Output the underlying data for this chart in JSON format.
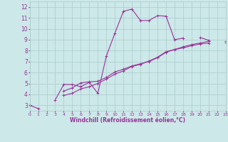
{
  "xlabel": "Windchill (Refroidissement éolien,°C)",
  "background_color": "#cce8e8",
  "grid_color": "#aacccc",
  "line_color": "#993399",
  "x_values": [
    0,
    1,
    2,
    3,
    4,
    5,
    6,
    7,
    8,
    9,
    10,
    11,
    12,
    13,
    14,
    15,
    16,
    17,
    18,
    19,
    20,
    21,
    22,
    23
  ],
  "y_main": [
    3.0,
    2.7,
    null,
    3.5,
    4.9,
    4.9,
    4.7,
    5.1,
    4.1,
    7.5,
    9.6,
    11.6,
    11.8,
    10.75,
    10.75,
    11.2,
    11.15,
    9.0,
    9.15,
    null,
    9.2,
    8.95,
    null,
    8.85
  ],
  "y_line1": [
    3.0,
    null,
    null,
    null,
    4.3,
    4.6,
    5.05,
    5.15,
    5.2,
    5.55,
    6.05,
    6.3,
    6.6,
    6.8,
    7.0,
    7.35,
    7.85,
    8.1,
    8.35,
    8.55,
    8.7,
    8.85,
    null,
    8.85
  ],
  "y_line2": [
    3.0,
    null,
    null,
    null,
    3.9,
    4.1,
    4.5,
    4.7,
    5.0,
    5.4,
    5.85,
    6.15,
    6.55,
    6.75,
    7.05,
    7.4,
    7.9,
    8.1,
    8.25,
    8.45,
    8.6,
    8.7,
    null,
    8.75
  ],
  "xlim": [
    0,
    23
  ],
  "ylim": [
    2.5,
    12.5
  ],
  "yticks": [
    3,
    4,
    5,
    6,
    7,
    8,
    9,
    10,
    11,
    12
  ],
  "xticks": [
    0,
    1,
    2,
    3,
    4,
    5,
    6,
    7,
    8,
    9,
    10,
    11,
    12,
    13,
    14,
    15,
    16,
    17,
    18,
    19,
    20,
    21,
    22,
    23
  ]
}
